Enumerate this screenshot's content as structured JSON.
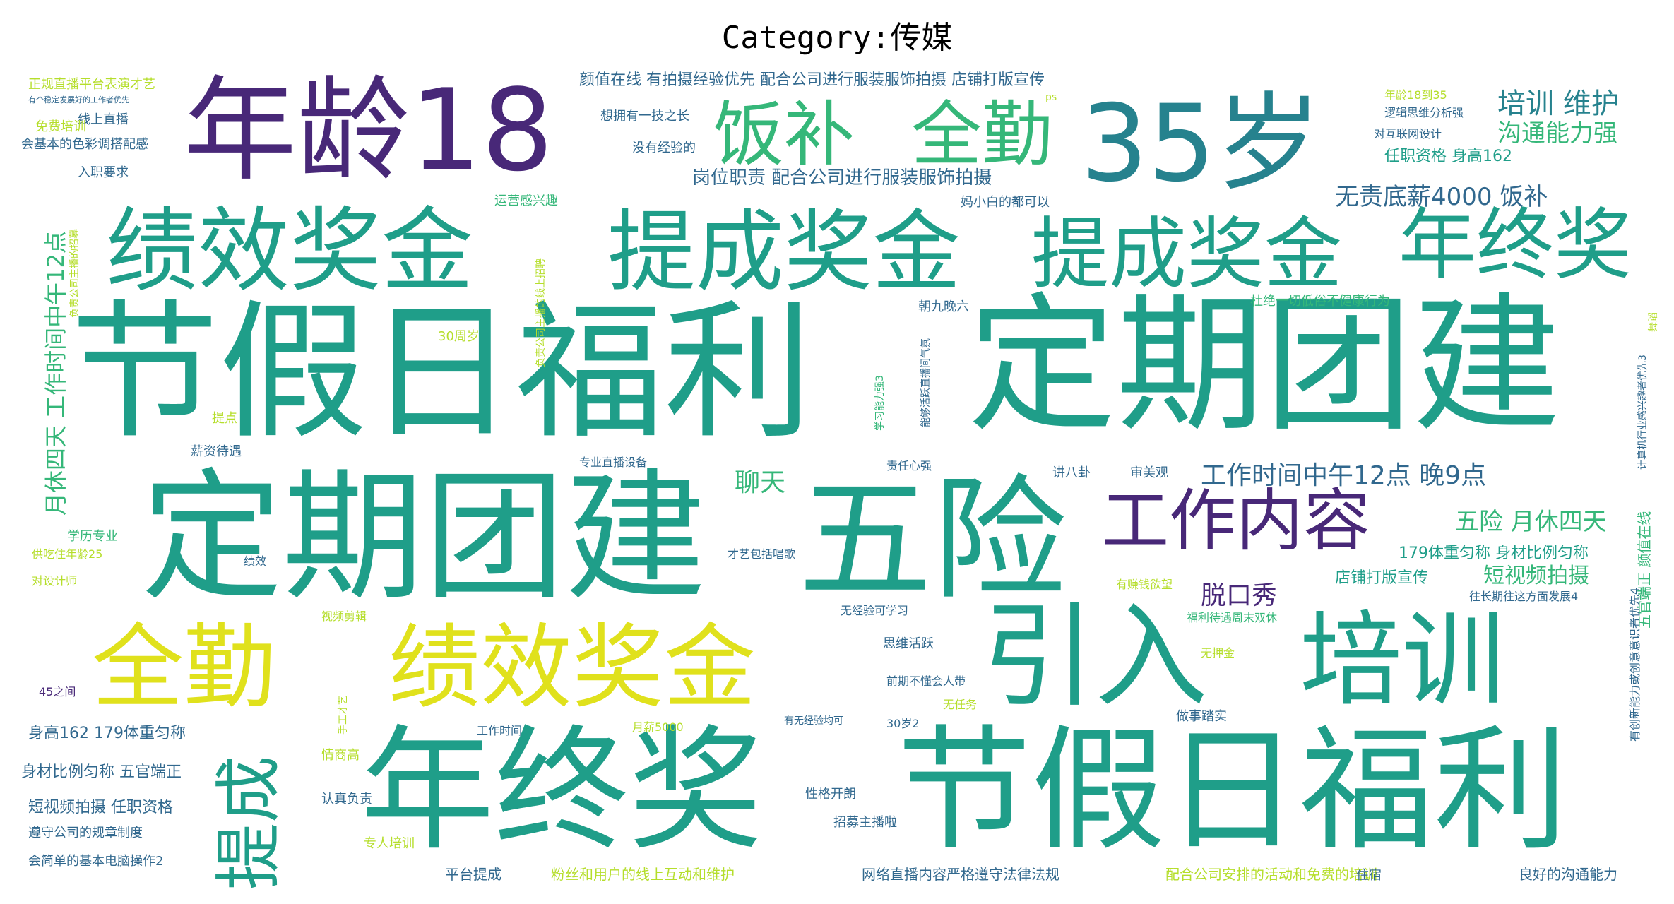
{
  "chart_data": {
    "type": "wordcloud",
    "title": "Category:传媒",
    "colormap": [
      "#440154",
      "#482878",
      "#3e4a89",
      "#31688e",
      "#26828e",
      "#1f9e89",
      "#35b779",
      "#6ece58",
      "#b5de2b",
      "#fde725"
    ],
    "words": [
      {
        "text": "节假日福利",
        "weight": 100,
        "color": "#1f9e89"
      },
      {
        "text": "定期团建",
        "weight": 98,
        "color": "#1f9e89"
      },
      {
        "text": "定期团建",
        "weight": 96,
        "color": "#1f9e89"
      },
      {
        "text": "节假日福利",
        "weight": 92,
        "color": "#1f9e89"
      },
      {
        "text": "年终奖",
        "weight": 90,
        "color": "#1f9e89"
      },
      {
        "text": "五险",
        "weight": 88,
        "color": "#1f9e89"
      },
      {
        "text": "年龄18",
        "weight": 86,
        "color": "#482878"
      },
      {
        "text": "35岁",
        "weight": 85,
        "color": "#26828e"
      },
      {
        "text": "引入",
        "weight": 82,
        "color": "#1f9e89"
      },
      {
        "text": "培训",
        "weight": 78,
        "color": "#1f9e89"
      },
      {
        "text": "绩效奖金",
        "weight": 80,
        "color": "#1f9e89"
      },
      {
        "text": "提成奖金",
        "weight": 76,
        "color": "#1f9e89"
      },
      {
        "text": "提成奖金",
        "weight": 72,
        "color": "#1f9e89"
      },
      {
        "text": "绩效奖金",
        "weight": 74,
        "color": "#e0e11c"
      },
      {
        "text": "全勤",
        "weight": 70,
        "color": "#e0e11c"
      },
      {
        "text": "年终奖",
        "weight": 62,
        "color": "#1f9e89"
      },
      {
        "text": "饭补",
        "weight": 60,
        "color": "#35b779"
      },
      {
        "text": "全勤",
        "weight": 58,
        "color": "#35b779"
      },
      {
        "text": "工作内容",
        "weight": 56,
        "color": "#482878"
      },
      {
        "text": "提成",
        "weight": 54,
        "color": "#1f9e89"
      },
      {
        "text": "培训 维护",
        "weight": 30,
        "color": "#26828e"
      },
      {
        "text": "沟通能力强",
        "weight": 28,
        "color": "#35b779"
      },
      {
        "text": "无责底薪4000 饭补",
        "weight": 28,
        "color": "#31688e"
      },
      {
        "text": "工作时间中午12点 晚9点",
        "weight": 28,
        "color": "#31688e"
      },
      {
        "text": "五险 月休四天",
        "weight": 26,
        "color": "#35b779"
      },
      {
        "text": "脱口秀",
        "weight": 26,
        "color": "#482878"
      },
      {
        "text": "聊天",
        "weight": 26,
        "color": "#35b779"
      },
      {
        "text": "短视频拍摄",
        "weight": 24,
        "color": "#35b779"
      },
      {
        "text": "岗位职责 配合公司进行服装服饰拍摄",
        "weight": 22,
        "color": "#31688e"
      },
      {
        "text": "颜值在线 有拍摄经验优先 配合公司进行服装服饰拍摄 店铺打版宣传",
        "weight": 20,
        "color": "#31688e"
      },
      {
        "text": "月休四天 工作时间中午12点",
        "weight": 24,
        "color": "#35b779"
      },
      {
        "text": "任职资格 身高162",
        "weight": 18,
        "color": "#1f9e89"
      },
      {
        "text": "179体重匀称 身材比例匀称",
        "weight": 18,
        "color": "#1f9e89"
      },
      {
        "text": "店铺打版宣传",
        "weight": 18,
        "color": "#1f9e89"
      },
      {
        "text": "身高162 179体重匀称",
        "weight": 18,
        "color": "#31688e"
      },
      {
        "text": "身材比例匀称 五官端正",
        "weight": 18,
        "color": "#31688e"
      },
      {
        "text": "短视频拍摄 任职资格",
        "weight": 18,
        "color": "#31688e"
      },
      {
        "text": "网络直播内容严格遵守法律法规",
        "weight": 16,
        "color": "#31688e"
      },
      {
        "text": "配合公司安排的活动和免费的培训",
        "weight": 16,
        "color": "#b5de2b"
      },
      {
        "text": "良好的沟通能力",
        "weight": 16,
        "color": "#31688e"
      },
      {
        "text": "粉丝和用户的线上互动和维护",
        "weight": 16,
        "color": "#b5de2b"
      },
      {
        "text": "平台提成",
        "weight": 16,
        "color": "#31688e"
      },
      {
        "text": "会简单的基本电脑操作2",
        "weight": 14,
        "color": "#31688e"
      },
      {
        "text": "遵守公司的规章制度",
        "weight": 14,
        "color": "#31688e"
      },
      {
        "text": "线上直播",
        "weight": 14,
        "color": "#31688e"
      },
      {
        "text": "会基本的色彩调搭配感",
        "weight": 14,
        "color": "#31688e"
      },
      {
        "text": "免费培训",
        "weight": 14,
        "color": "#b5de2b"
      },
      {
        "text": "入职要求",
        "weight": 14,
        "color": "#31688e"
      },
      {
        "text": "正规直播平台表演才艺",
        "weight": 14,
        "color": "#b5de2b"
      },
      {
        "text": "想拥有一技之长",
        "weight": 14,
        "color": "#31688e"
      },
      {
        "text": "没有经验的",
        "weight": 14,
        "color": "#31688e"
      },
      {
        "text": "逻辑思维分析强",
        "weight": 14,
        "color": "#31688e"
      },
      {
        "text": "对互联网设计",
        "weight": 14,
        "color": "#31688e"
      },
      {
        "text": "年龄18到35",
        "weight": 14,
        "color": "#b5de2b"
      },
      {
        "text": "运营感兴趣",
        "weight": 14,
        "color": "#35b779"
      },
      {
        "text": "妈小白的都可以",
        "weight": 14,
        "color": "#31688e"
      },
      {
        "text": "朝九晚六",
        "weight": 14,
        "color": "#31688e"
      },
      {
        "text": "杜绝一切低俗不健康行为",
        "weight": 14,
        "color": "#35b779"
      },
      {
        "text": "30周岁",
        "weight": 14,
        "color": "#b5de2b"
      },
      {
        "text": "提点",
        "weight": 14,
        "color": "#b5de2b"
      },
      {
        "text": "薪资待遇",
        "weight": 14,
        "color": "#31688e"
      },
      {
        "text": "专业直播设备",
        "weight": 14,
        "color": "#31688e"
      },
      {
        "text": "责任心强",
        "weight": 14,
        "color": "#31688e"
      },
      {
        "text": "讲八卦",
        "weight": 14,
        "color": "#31688e"
      },
      {
        "text": "审美观",
        "weight": 14,
        "color": "#31688e"
      },
      {
        "text": "学历专业",
        "weight": 14,
        "color": "#35b779"
      },
      {
        "text": "供吃住年龄25",
        "weight": 14,
        "color": "#b5de2b"
      },
      {
        "text": "对设计师",
        "weight": 14,
        "color": "#b5de2b"
      },
      {
        "text": "绩效",
        "weight": 14,
        "color": "#31688e"
      },
      {
        "text": "才艺包括唱歌",
        "weight": 14,
        "color": "#31688e"
      },
      {
        "text": "有赚钱欲望",
        "weight": 14,
        "color": "#b5de2b"
      },
      {
        "text": "福利待遇周末双休",
        "weight": 14,
        "color": "#35b779"
      },
      {
        "text": "往长期往这方面发展4",
        "weight": 14,
        "color": "#31688e"
      },
      {
        "text": "无经验可学习",
        "weight": 14,
        "color": "#31688e"
      },
      {
        "text": "视频剪辑",
        "weight": 14,
        "color": "#b5de2b"
      },
      {
        "text": "思维活跃",
        "weight": 14,
        "color": "#31688e"
      },
      {
        "text": "无押金",
        "weight": 14,
        "color": "#b5de2b"
      },
      {
        "text": "45之间",
        "weight": 14,
        "color": "#482878"
      },
      {
        "text": "前期不懂会人带",
        "weight": 14,
        "color": "#31688e"
      },
      {
        "text": "无任务",
        "weight": 14,
        "color": "#b5de2b"
      },
      {
        "text": "做事踏实",
        "weight": 14,
        "color": "#31688e"
      },
      {
        "text": "30岁2",
        "weight": 14,
        "color": "#31688e"
      },
      {
        "text": "工作时间",
        "weight": 14,
        "color": "#31688e"
      },
      {
        "text": "月薪5000",
        "weight": 14,
        "color": "#b5de2b"
      },
      {
        "text": "有无经验均可",
        "weight": 12,
        "color": "#31688e"
      },
      {
        "text": "情商高",
        "weight": 14,
        "color": "#b5de2b"
      },
      {
        "text": "认真负责",
        "weight": 14,
        "color": "#31688e"
      },
      {
        "text": "性格开朗",
        "weight": 14,
        "color": "#31688e"
      },
      {
        "text": "招募主播啦",
        "weight": 14,
        "color": "#31688e"
      },
      {
        "text": "专人培训",
        "weight": 14,
        "color": "#b5de2b"
      },
      {
        "text": "住宿",
        "weight": 14,
        "color": "#31688e"
      },
      {
        "text": "手工才艺",
        "weight": 12,
        "color": "#b5de2b"
      },
      {
        "text": "有创新能力或创意意识者优先4",
        "weight": 12,
        "color": "#31688e"
      },
      {
        "text": "五官端正 颜值在线",
        "weight": 14,
        "color": "#35b779"
      },
      {
        "text": "计算机行业感兴趣者优先3",
        "weight": 12,
        "color": "#31688e"
      },
      {
        "text": "舞蹈",
        "weight": 12,
        "color": "#b5de2b"
      },
      {
        "text": "负责公司主播的线上招聘",
        "weight": 12,
        "color": "#b5de2b"
      },
      {
        "text": "学习能力强3",
        "weight": 12,
        "color": "#35b779"
      },
      {
        "text": "能够活跃直播间气氛",
        "weight": 12,
        "color": "#31688e"
      },
      {
        "text": "负责公司主播的招募",
        "weight": 12,
        "color": "#b5de2b"
      },
      {
        "text": "ps",
        "weight": 12,
        "color": "#b5de2b"
      },
      {
        "text": "有个稳定发展好的工作者优先",
        "weight": 10,
        "color": "#31688e"
      }
    ]
  }
}
